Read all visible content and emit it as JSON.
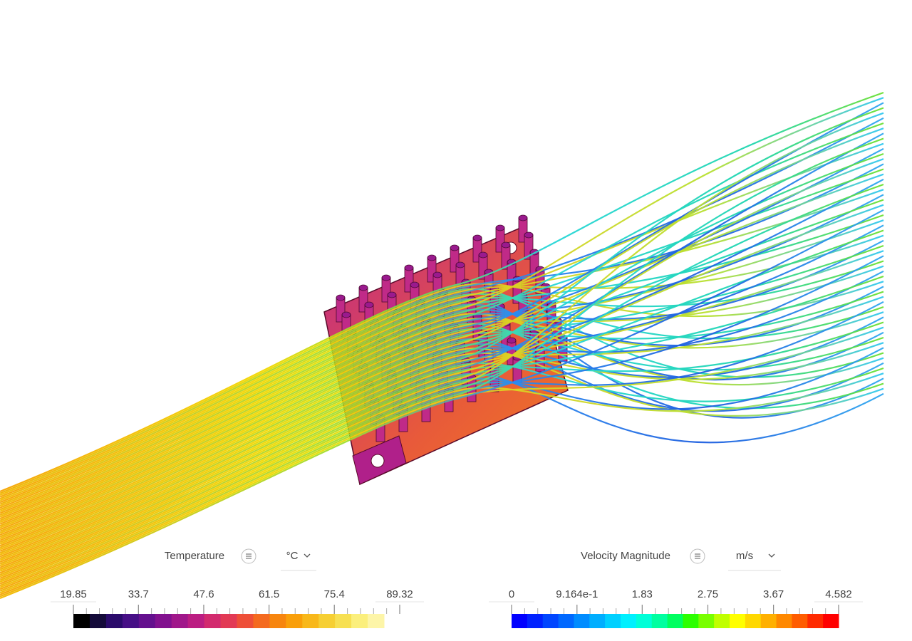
{
  "legends": [
    {
      "title": "Temperature",
      "unit": "°C",
      "ticks": [
        19.85,
        33.7,
        47.6,
        61.5,
        75.4,
        89.32
      ],
      "colors": [
        "#000000",
        "#140b3a",
        "#2a0b6b",
        "#460f86",
        "#64108e",
        "#82118f",
        "#a0178a",
        "#bb1d82",
        "#d22a6e",
        "#e23a55",
        "#ee4f38",
        "#f46a1f",
        "#f7850e",
        "#f99f0a",
        "#f8b81a",
        "#f6cf33",
        "#f7e052",
        "#fbef7c",
        "#fdf5a8"
      ]
    },
    {
      "title": "Velocity Magnitude",
      "unit": "m/s",
      "ticks": [
        0,
        {
          "value": 0.9164,
          "label": "9.164e-1"
        },
        1.83,
        2.75,
        3.67,
        4.582
      ],
      "colors": [
        "#0000ff",
        "#0022ff",
        "#0046ff",
        "#0068ff",
        "#008cff",
        "#00aeff",
        "#00d0ff",
        "#00f0ff",
        "#00ffd8",
        "#00ffa0",
        "#00ff60",
        "#2cff00",
        "#78ff00",
        "#c0ff00",
        "#ffff00",
        "#ffd800",
        "#ffb000",
        "#ff8800",
        "#ff5c00",
        "#ff2a00",
        "#ff0000"
      ]
    }
  ]
}
